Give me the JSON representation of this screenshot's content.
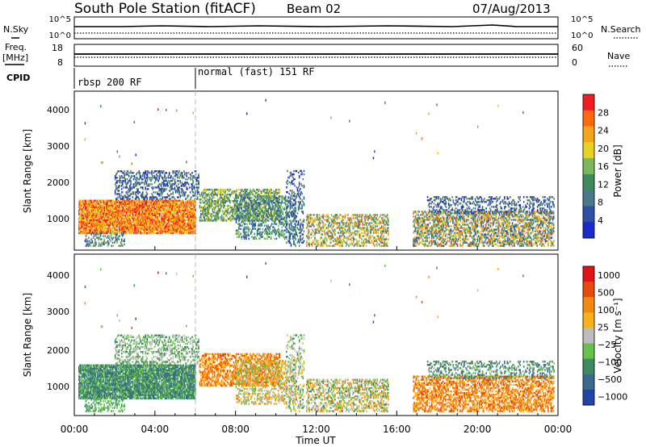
{
  "header": {
    "station": "South Pole Station (fitACF)",
    "beam": "Beam 02",
    "date": "07/Aug/2013"
  },
  "left_labels": {
    "nsky": "N.Sky",
    "freq_line1": "Freq.",
    "freq_line2": "[MHz]",
    "cpid": "CPID"
  },
  "right_labels": {
    "nsearch": "N.Search",
    "nave": "Nave"
  },
  "noise_panel": {
    "left_ticks": [
      "10^5",
      "10^0"
    ],
    "right_ticks": [
      "10^5",
      "10^0"
    ]
  },
  "freq_panel": {
    "left_ticks": [
      "18",
      "8"
    ],
    "right_ticks": [
      "60",
      "0"
    ]
  },
  "cpid_segments": [
    {
      "label": "rbsp 200 RF",
      "start_hour": 0
    },
    {
      "label": "normal (fast) 151 RF",
      "start_hour": 6
    }
  ],
  "colors": {
    "power_scale": [
      "#1a2bc9",
      "#2e4fa8",
      "#4a7a8a",
      "#3e8a5a",
      "#7ab85a",
      "#e8d21f",
      "#f5a51c",
      "#ff6a10",
      "#f01e1e"
    ],
    "velocity_scale": [
      "#2244aa",
      "#3a6a8f",
      "#3e8a62",
      "#66c24a",
      "#bdbdbd",
      "#f7b21a",
      "#f28a10",
      "#e84a0a",
      "#e01414"
    ]
  },
  "chart_data": [
    {
      "type": "heatmap",
      "name": "power",
      "ylabel": "Slant Range [km]",
      "yticks": [
        "1000",
        "2000",
        "3000",
        "4000"
      ],
      "ylim": [
        200,
        4600
      ],
      "xlim_hours": [
        0,
        24
      ],
      "colorbar_label": "Power [dB]",
      "colorbar_ticks": [
        "4",
        "8",
        "12",
        "16",
        "20",
        "24",
        "28"
      ],
      "colorbar_range": [
        0,
        32
      ]
    },
    {
      "type": "heatmap",
      "name": "velocity",
      "ylabel": "Slant Range [km]",
      "yticks": [
        "1000",
        "2000",
        "3000",
        "4000"
      ],
      "ylim": [
        200,
        4600
      ],
      "xlim_hours": [
        0,
        24
      ],
      "xticks": [
        "00:00",
        "04:00",
        "08:00",
        "12:00",
        "16:00",
        "20:00",
        "00:00"
      ],
      "xlabel": "Time UT",
      "colorbar_label": "Velocity [m s⁻¹]",
      "colorbar_ticks": [
        "1000",
        "500",
        "100",
        "25",
        "−25",
        "−100",
        "−500",
        "−1000"
      ]
    }
  ]
}
